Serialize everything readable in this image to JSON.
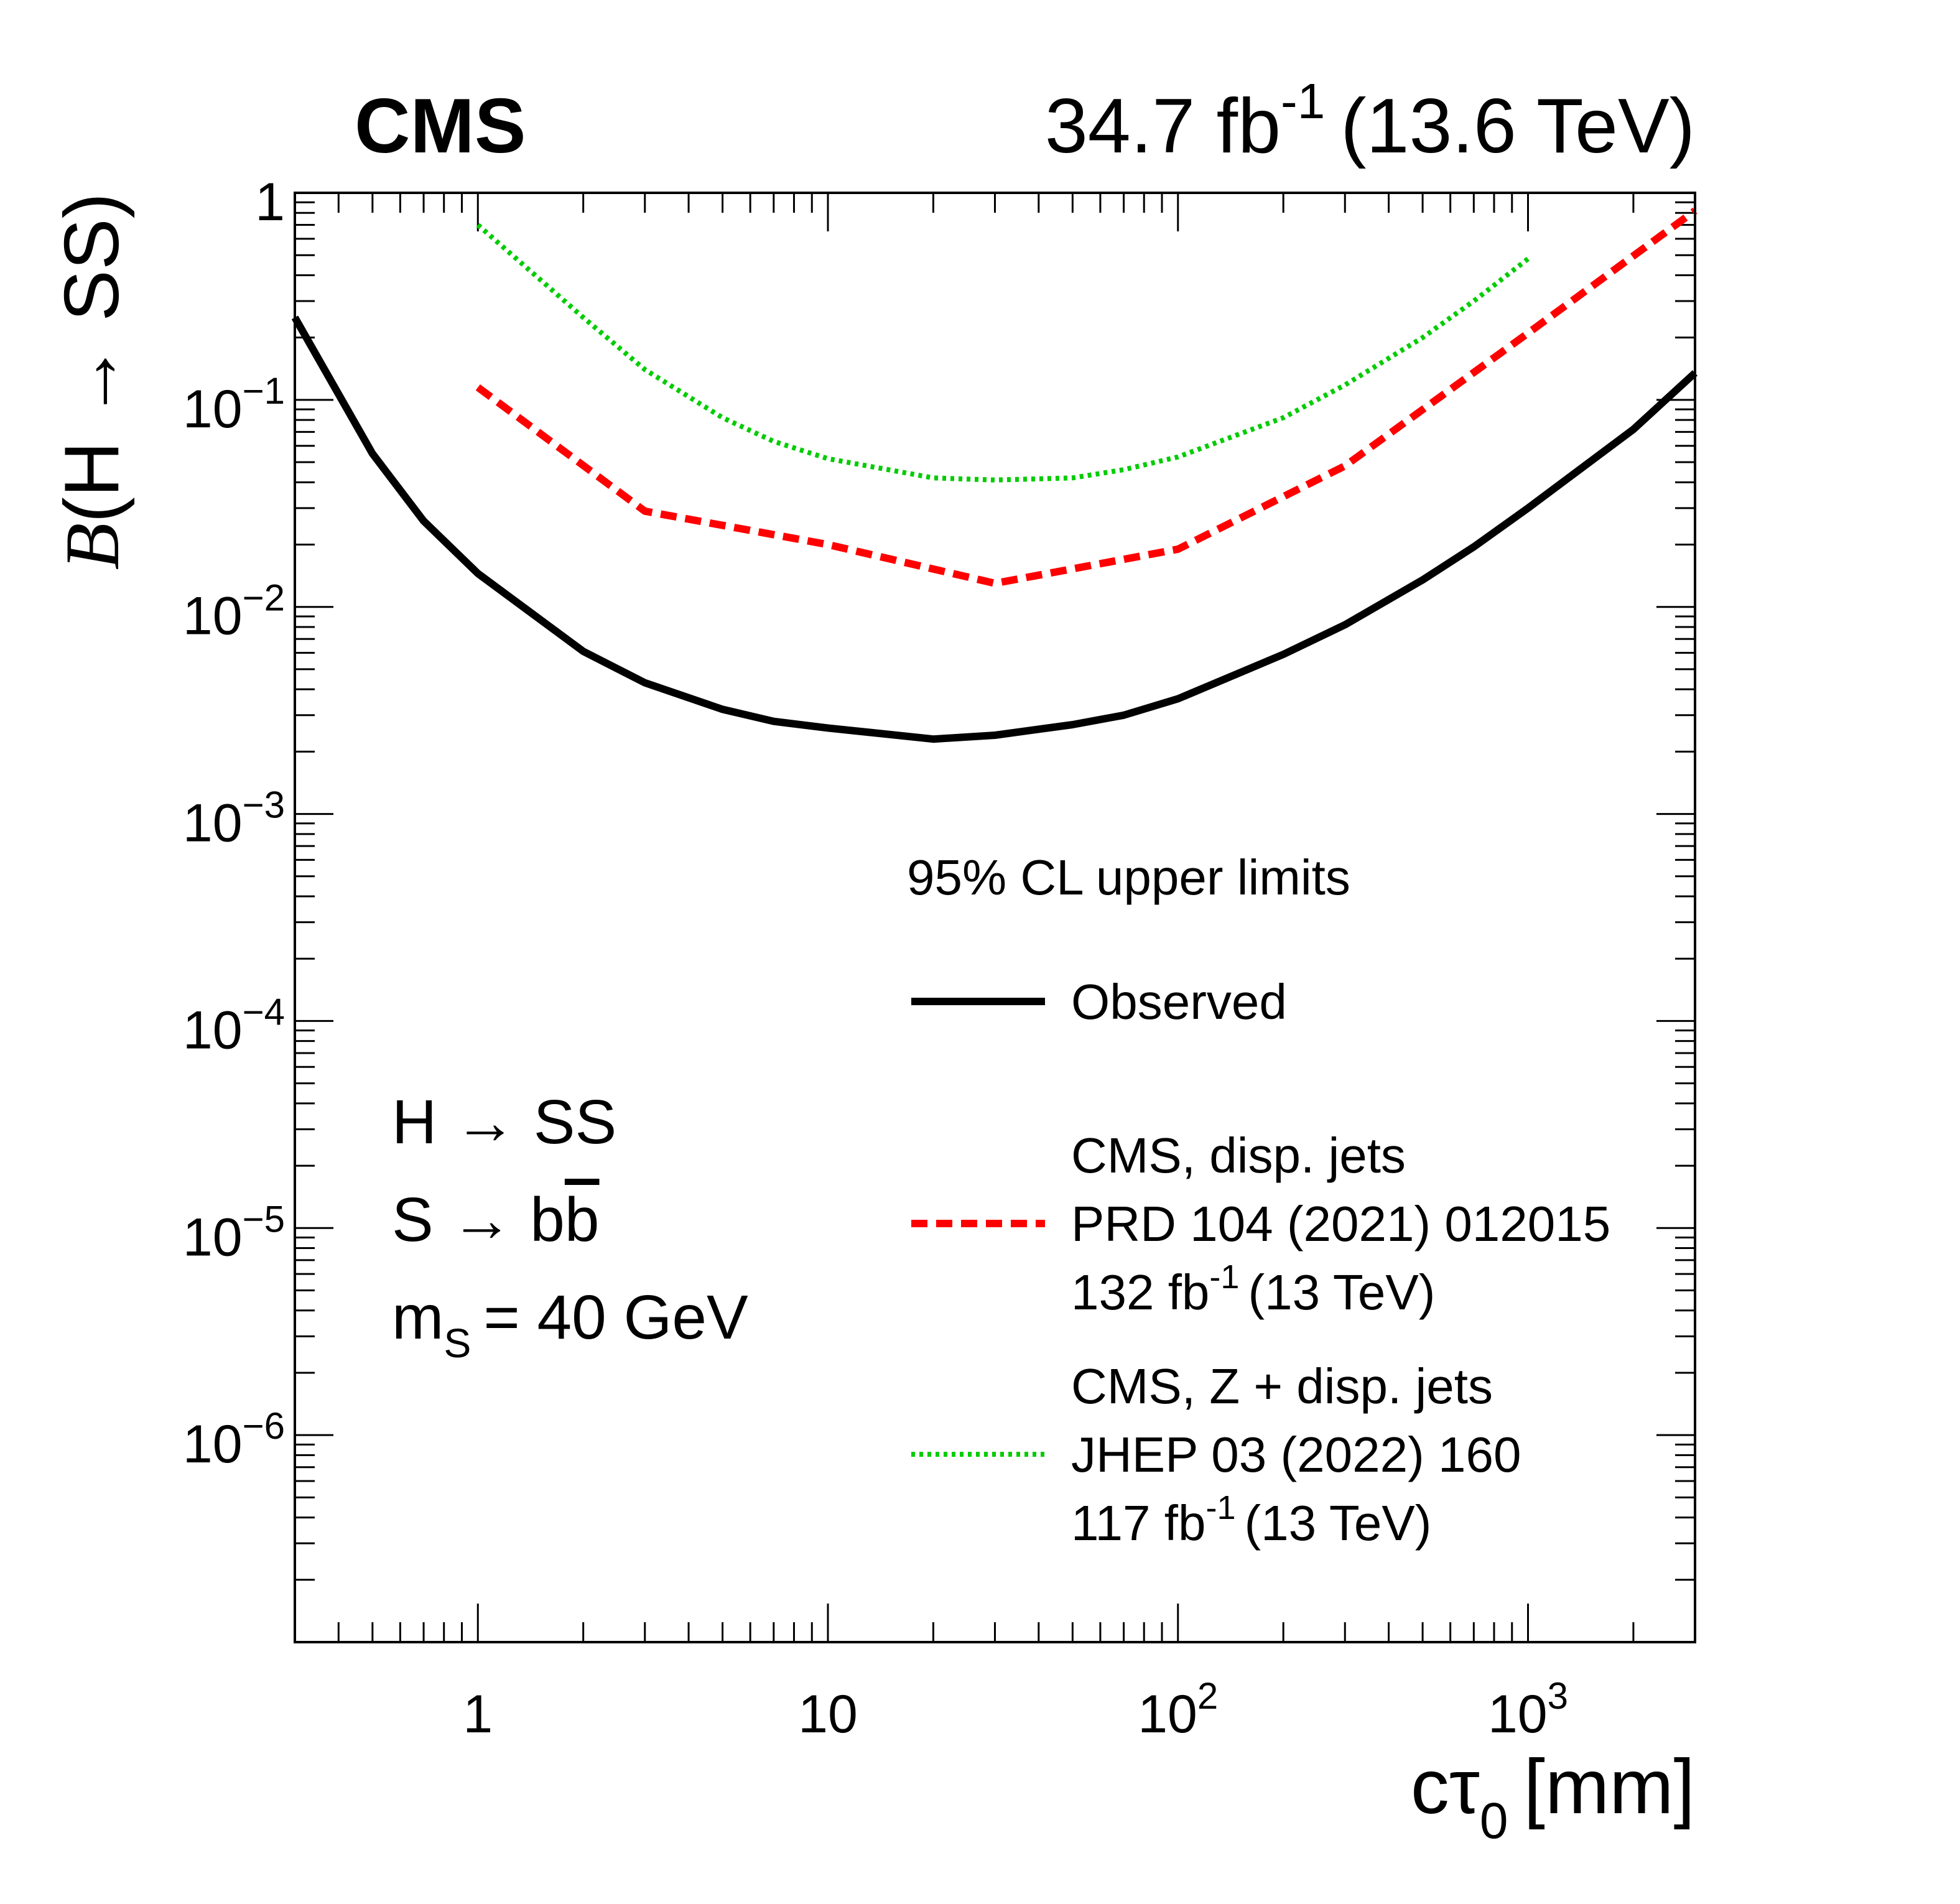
{
  "chart_data": {
    "type": "line",
    "experiment_label": "CMS",
    "lumi_label": "34.7 fb",
    "lumi_exponent": "-1",
    "energy_label": "(13.6 TeV)",
    "xlabel": "cτ",
    "xlabel_sub": "0",
    "xlabel_unit": "[mm]",
    "ylabel_func": "B",
    "ylabel_arg": "(H → SS)",
    "xscale": "log",
    "yscale": "log",
    "xlim": [
      0.3,
      3000
    ],
    "ylim": [
      1e-07,
      1
    ],
    "x_ticks": [
      {
        "value": 1,
        "label": "1",
        "exp": ""
      },
      {
        "value": 10,
        "label": "10",
        "exp": ""
      },
      {
        "value": 100,
        "label": "10",
        "exp": "2"
      },
      {
        "value": 1000,
        "label": "10",
        "exp": "3"
      }
    ],
    "y_ticks": [
      {
        "value": 1,
        "label": "1",
        "exp": ""
      },
      {
        "value": 0.1,
        "label": "10",
        "exp": "−1"
      },
      {
        "value": 0.01,
        "label": "10",
        "exp": "−2"
      },
      {
        "value": 0.001,
        "label": "10",
        "exp": "−3"
      },
      {
        "value": 0.0001,
        "label": "10",
        "exp": "−4"
      },
      {
        "value": 1e-05,
        "label": "10",
        "exp": "−5"
      },
      {
        "value": 1e-06,
        "label": "10",
        "exp": "−6"
      }
    ],
    "legend": {
      "header": "95% CL upper limits",
      "position": "right",
      "entries": [
        {
          "series": 0,
          "lines": [
            "Observed"
          ]
        },
        {
          "series": 1,
          "lines": [
            "CMS, disp. jets",
            "PRD 104 (2021) 012015",
            "132 fb|-1|(13 TeV)"
          ]
        },
        {
          "series": 2,
          "lines": [
            "CMS, Z + disp. jets",
            "JHEP 03 (2022) 160",
            "117 fb|-1|(13 TeV)"
          ]
        }
      ]
    },
    "annotations": {
      "process_1": "H → SS",
      "process_2_prefix": "S → b",
      "process_2_bar": "b",
      "mass_prefix": "m",
      "mass_sub": "S",
      "mass_value": "= 40 GeV"
    },
    "series": [
      {
        "name": "Observed",
        "color": "#000000",
        "style": "solid",
        "x": [
          0.3,
          0.5,
          0.7,
          1,
          2,
          3,
          5,
          7,
          10,
          20,
          30,
          50,
          70,
          100,
          200,
          300,
          500,
          700,
          1000,
          2000,
          3000
        ],
        "y": [
          0.25,
          0.055,
          0.026,
          0.0145,
          0.0061,
          0.0043,
          0.0032,
          0.0028,
          0.0026,
          0.0023,
          0.0024,
          0.0027,
          0.003,
          0.0036,
          0.0059,
          0.0082,
          0.0135,
          0.0195,
          0.03,
          0.072,
          0.135
        ]
      },
      {
        "name": "CMS, disp. jets",
        "color": "#ff0000",
        "style": "dashed",
        "x": [
          1,
          3,
          10,
          30,
          100,
          300,
          1000,
          3000
        ],
        "y": [
          0.115,
          0.029,
          0.02,
          0.013,
          0.019,
          0.048,
          0.21,
          0.82
        ]
      },
      {
        "name": "CMS, Z + disp. jets",
        "color": "#00cc00",
        "style": "dotted",
        "x": [
          1,
          2,
          3,
          5,
          7,
          10,
          20,
          30,
          50,
          70,
          100,
          200,
          300,
          500,
          700,
          1000
        ],
        "y": [
          0.7,
          0.25,
          0.14,
          0.082,
          0.063,
          0.052,
          0.042,
          0.041,
          0.042,
          0.046,
          0.053,
          0.082,
          0.118,
          0.2,
          0.3,
          0.48
        ]
      }
    ]
  }
}
